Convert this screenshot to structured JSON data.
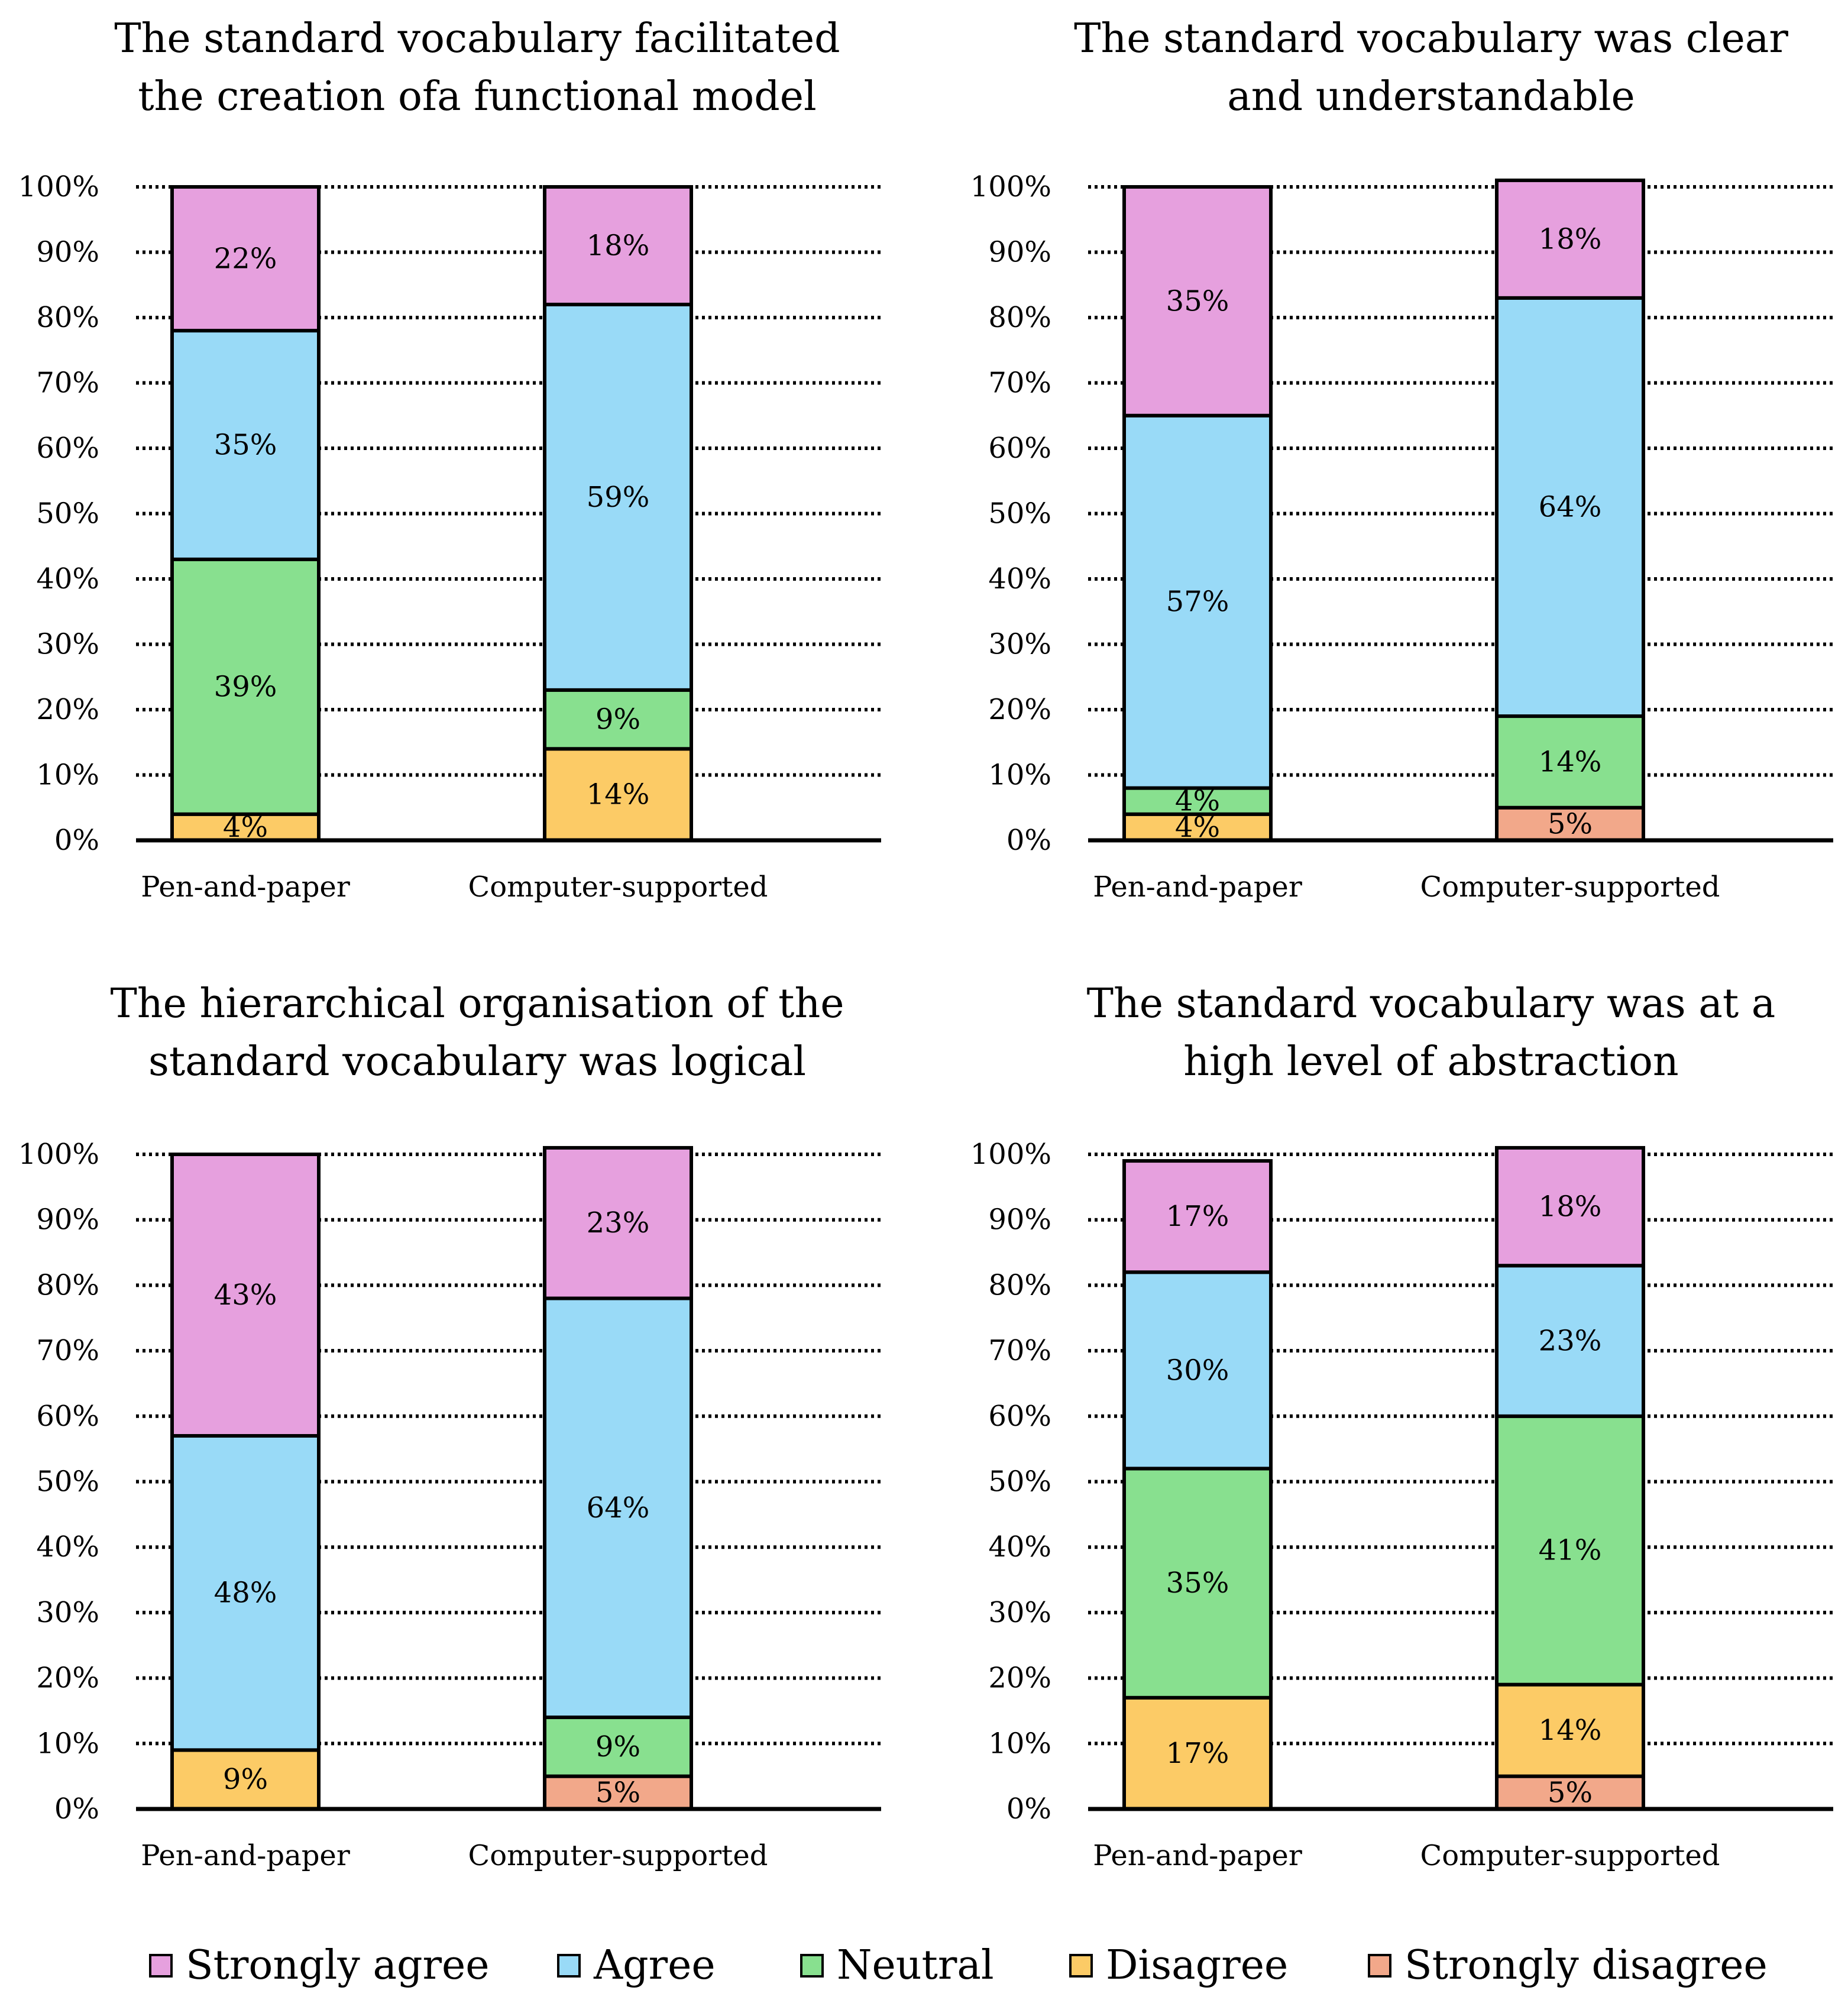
{
  "colors": {
    "Strongly agree": "#E6A0DE",
    "Agree": "#99DAF7",
    "Neutral": "#88E08F",
    "Disagree": "#FCCB66",
    "Strongly disagree": "#F2A88A"
  },
  "legend": [
    "Strongly agree",
    "Agree",
    "Neutral",
    "Disagree",
    "Strongly disagree"
  ],
  "chart_data": [
    {
      "type": "bar",
      "stacked": true,
      "title_lines": [
        "The standard vocabulary facilitated",
        "the creation ofa functional model"
      ],
      "categories": [
        "Pen-and-paper",
        "Computer-supported"
      ],
      "ylim": [
        0,
        100
      ],
      "yticks": [
        "0%",
        "10%",
        "20%",
        "30%",
        "40%",
        "50%",
        "60%",
        "70%",
        "80%",
        "90%",
        "100%"
      ],
      "grid": "dotted",
      "series": [
        {
          "name": "Strongly disagree",
          "values": [
            0,
            0
          ],
          "labels": [
            "",
            ""
          ]
        },
        {
          "name": "Disagree",
          "values": [
            4,
            14
          ],
          "labels": [
            "4%",
            "14%"
          ]
        },
        {
          "name": "Neutral",
          "values": [
            39,
            9
          ],
          "labels": [
            "39%",
            "9%"
          ]
        },
        {
          "name": "Agree",
          "values": [
            35,
            59
          ],
          "labels": [
            "35%",
            "59%"
          ]
        },
        {
          "name": "Strongly agree",
          "values": [
            22,
            18
          ],
          "labels": [
            "22%",
            "18%"
          ]
        }
      ]
    },
    {
      "type": "bar",
      "stacked": true,
      "title_lines": [
        "The standard vocabulary was clear",
        "and understandable"
      ],
      "categories": [
        "Pen-and-paper",
        "Computer-supported"
      ],
      "ylim": [
        0,
        100
      ],
      "yticks": [
        "0%",
        "10%",
        "20%",
        "30%",
        "40%",
        "50%",
        "60%",
        "70%",
        "80%",
        "90%",
        "100%"
      ],
      "grid": "dotted",
      "series": [
        {
          "name": "Strongly disagree",
          "values": [
            0,
            5
          ],
          "labels": [
            "",
            "5%"
          ]
        },
        {
          "name": "Disagree",
          "values": [
            4,
            0
          ],
          "labels": [
            "4%",
            ""
          ]
        },
        {
          "name": "Neutral",
          "values": [
            4,
            14
          ],
          "labels": [
            "4%",
            "14%"
          ]
        },
        {
          "name": "Agree",
          "values": [
            57,
            64
          ],
          "labels": [
            "57%",
            "64%"
          ]
        },
        {
          "name": "Strongly agree",
          "values": [
            35,
            18
          ],
          "labels": [
            "35%",
            "18%"
          ]
        }
      ]
    },
    {
      "type": "bar",
      "stacked": true,
      "title_lines": [
        "The hierarchical organisation of the",
        "standard vocabulary was logical"
      ],
      "categories": [
        "Pen-and-paper",
        "Computer-supported"
      ],
      "ylim": [
        0,
        100
      ],
      "yticks": [
        "0%",
        "10%",
        "20%",
        "30%",
        "40%",
        "50%",
        "60%",
        "70%",
        "80%",
        "90%",
        "100%"
      ],
      "grid": "dotted",
      "series": [
        {
          "name": "Strongly disagree",
          "values": [
            0,
            5
          ],
          "labels": [
            "",
            "5%"
          ]
        },
        {
          "name": "Disagree",
          "values": [
            9,
            0
          ],
          "labels": [
            "9%",
            ""
          ]
        },
        {
          "name": "Neutral",
          "values": [
            0,
            9
          ],
          "labels": [
            "",
            "9%"
          ]
        },
        {
          "name": "Agree",
          "values": [
            48,
            64
          ],
          "labels": [
            "48%",
            "64%"
          ]
        },
        {
          "name": "Strongly agree",
          "values": [
            43,
            23
          ],
          "labels": [
            "43%",
            "23%"
          ]
        }
      ]
    },
    {
      "type": "bar",
      "stacked": true,
      "title_lines": [
        "The standard vocabulary was at a",
        "high level of abstraction"
      ],
      "categories": [
        "Pen-and-paper",
        "Computer-supported"
      ],
      "ylim": [
        0,
        100
      ],
      "yticks": [
        "0%",
        "10%",
        "20%",
        "30%",
        "40%",
        "50%",
        "60%",
        "70%",
        "80%",
        "90%",
        "100%"
      ],
      "grid": "dotted",
      "series": [
        {
          "name": "Strongly disagree",
          "values": [
            0,
            5
          ],
          "labels": [
            "",
            "5%"
          ]
        },
        {
          "name": "Disagree",
          "values": [
            17,
            14
          ],
          "labels": [
            "17%",
            "14%"
          ]
        },
        {
          "name": "Neutral",
          "values": [
            35,
            41
          ],
          "labels": [
            "35%",
            "41%"
          ]
        },
        {
          "name": "Agree",
          "values": [
            30,
            23
          ],
          "labels": [
            "30%",
            "23%"
          ]
        },
        {
          "name": "Strongly agree",
          "values": [
            17,
            18
          ],
          "labels": [
            "17%",
            "18%"
          ]
        }
      ]
    }
  ]
}
